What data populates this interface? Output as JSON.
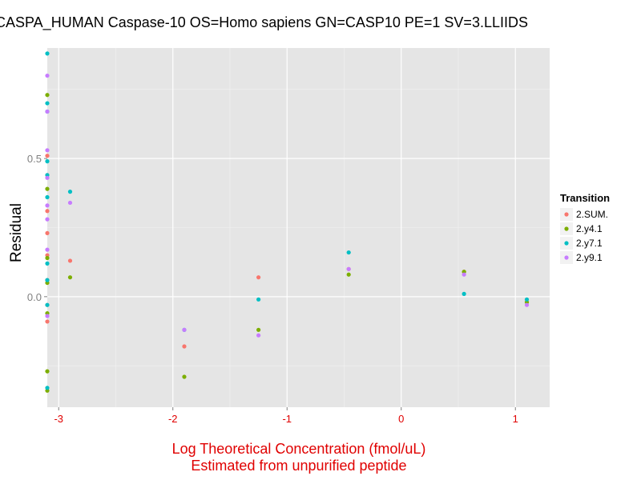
{
  "chart_data": {
    "type": "scatter",
    "title": "CASPA_HUMAN Caspase-10 OS=Homo sapiens GN=CASP10 PE=1 SV=3.LLIIDS",
    "xlabel": [
      "Log Theoretical Concentration (fmol/uL)",
      "Estimated from unpurified peptide"
    ],
    "ylabel": "Residual",
    "xlim": [
      -3.1,
      1.3
    ],
    "ylim": [
      -0.4,
      0.9
    ],
    "x_ticks": [
      -3,
      -2,
      -1,
      0,
      1
    ],
    "x_tick_labels": [
      "-3",
      "-2",
      "-1",
      "0",
      "1"
    ],
    "y_ticks": [
      0.0,
      0.5
    ],
    "y_tick_labels": [
      "0.0",
      "0.5"
    ],
    "grid": true,
    "legend": {
      "title": "Transition",
      "position": "right"
    },
    "series": [
      {
        "name": "2.SUM.",
        "color": "#F8766D",
        "points": [
          [
            -3.1,
            0.51
          ],
          [
            -3.1,
            0.44
          ],
          [
            -3.1,
            0.31
          ],
          [
            -3.1,
            0.23
          ],
          [
            -3.1,
            0.15
          ],
          [
            -3.1,
            0.06
          ],
          [
            -3.1,
            -0.03
          ],
          [
            -3.1,
            -0.09
          ],
          [
            -2.9,
            0.13
          ],
          [
            -1.9,
            -0.18
          ],
          [
            -1.25,
            0.07
          ],
          [
            -0.46,
            0.1
          ],
          [
            0.55,
            0.09
          ],
          [
            1.1,
            -0.02
          ]
        ]
      },
      {
        "name": "2.y4.1",
        "color": "#7CAE00",
        "points": [
          [
            -3.1,
            0.73
          ],
          [
            -3.1,
            0.39
          ],
          [
            -3.1,
            0.14
          ],
          [
            -3.1,
            0.05
          ],
          [
            -3.1,
            -0.06
          ],
          [
            -3.1,
            -0.27
          ],
          [
            -3.1,
            -0.34
          ],
          [
            -2.9,
            0.07
          ],
          [
            -1.9,
            -0.29
          ],
          [
            -1.25,
            -0.12
          ],
          [
            -0.46,
            0.08
          ],
          [
            0.55,
            0.09
          ],
          [
            1.1,
            -0.02
          ]
        ]
      },
      {
        "name": "2.y7.1",
        "color": "#00BFC4",
        "points": [
          [
            -3.1,
            0.88
          ],
          [
            -3.1,
            0.7
          ],
          [
            -3.1,
            0.67
          ],
          [
            -3.1,
            0.49
          ],
          [
            -3.1,
            0.44
          ],
          [
            -3.1,
            0.36
          ],
          [
            -3.1,
            0.12
          ],
          [
            -3.1,
            0.06
          ],
          [
            -3.1,
            -0.03
          ],
          [
            -3.1,
            -0.33
          ],
          [
            -2.9,
            0.38
          ],
          [
            -1.9,
            -0.12
          ],
          [
            -1.25,
            -0.01
          ],
          [
            -0.46,
            0.16
          ],
          [
            0.55,
            0.01
          ],
          [
            1.1,
            -0.01
          ]
        ]
      },
      {
        "name": "2.y9.1",
        "color": "#C77CFF",
        "points": [
          [
            -3.1,
            0.8
          ],
          [
            -3.1,
            0.67
          ],
          [
            -3.1,
            0.53
          ],
          [
            -3.1,
            0.43
          ],
          [
            -3.1,
            0.33
          ],
          [
            -3.1,
            0.28
          ],
          [
            -3.1,
            0.17
          ],
          [
            -3.1,
            -0.07
          ],
          [
            -2.9,
            0.34
          ],
          [
            -1.9,
            -0.12
          ],
          [
            -1.25,
            -0.14
          ],
          [
            -0.46,
            0.1
          ],
          [
            0.55,
            0.08
          ],
          [
            1.1,
            -0.03
          ]
        ]
      }
    ]
  }
}
